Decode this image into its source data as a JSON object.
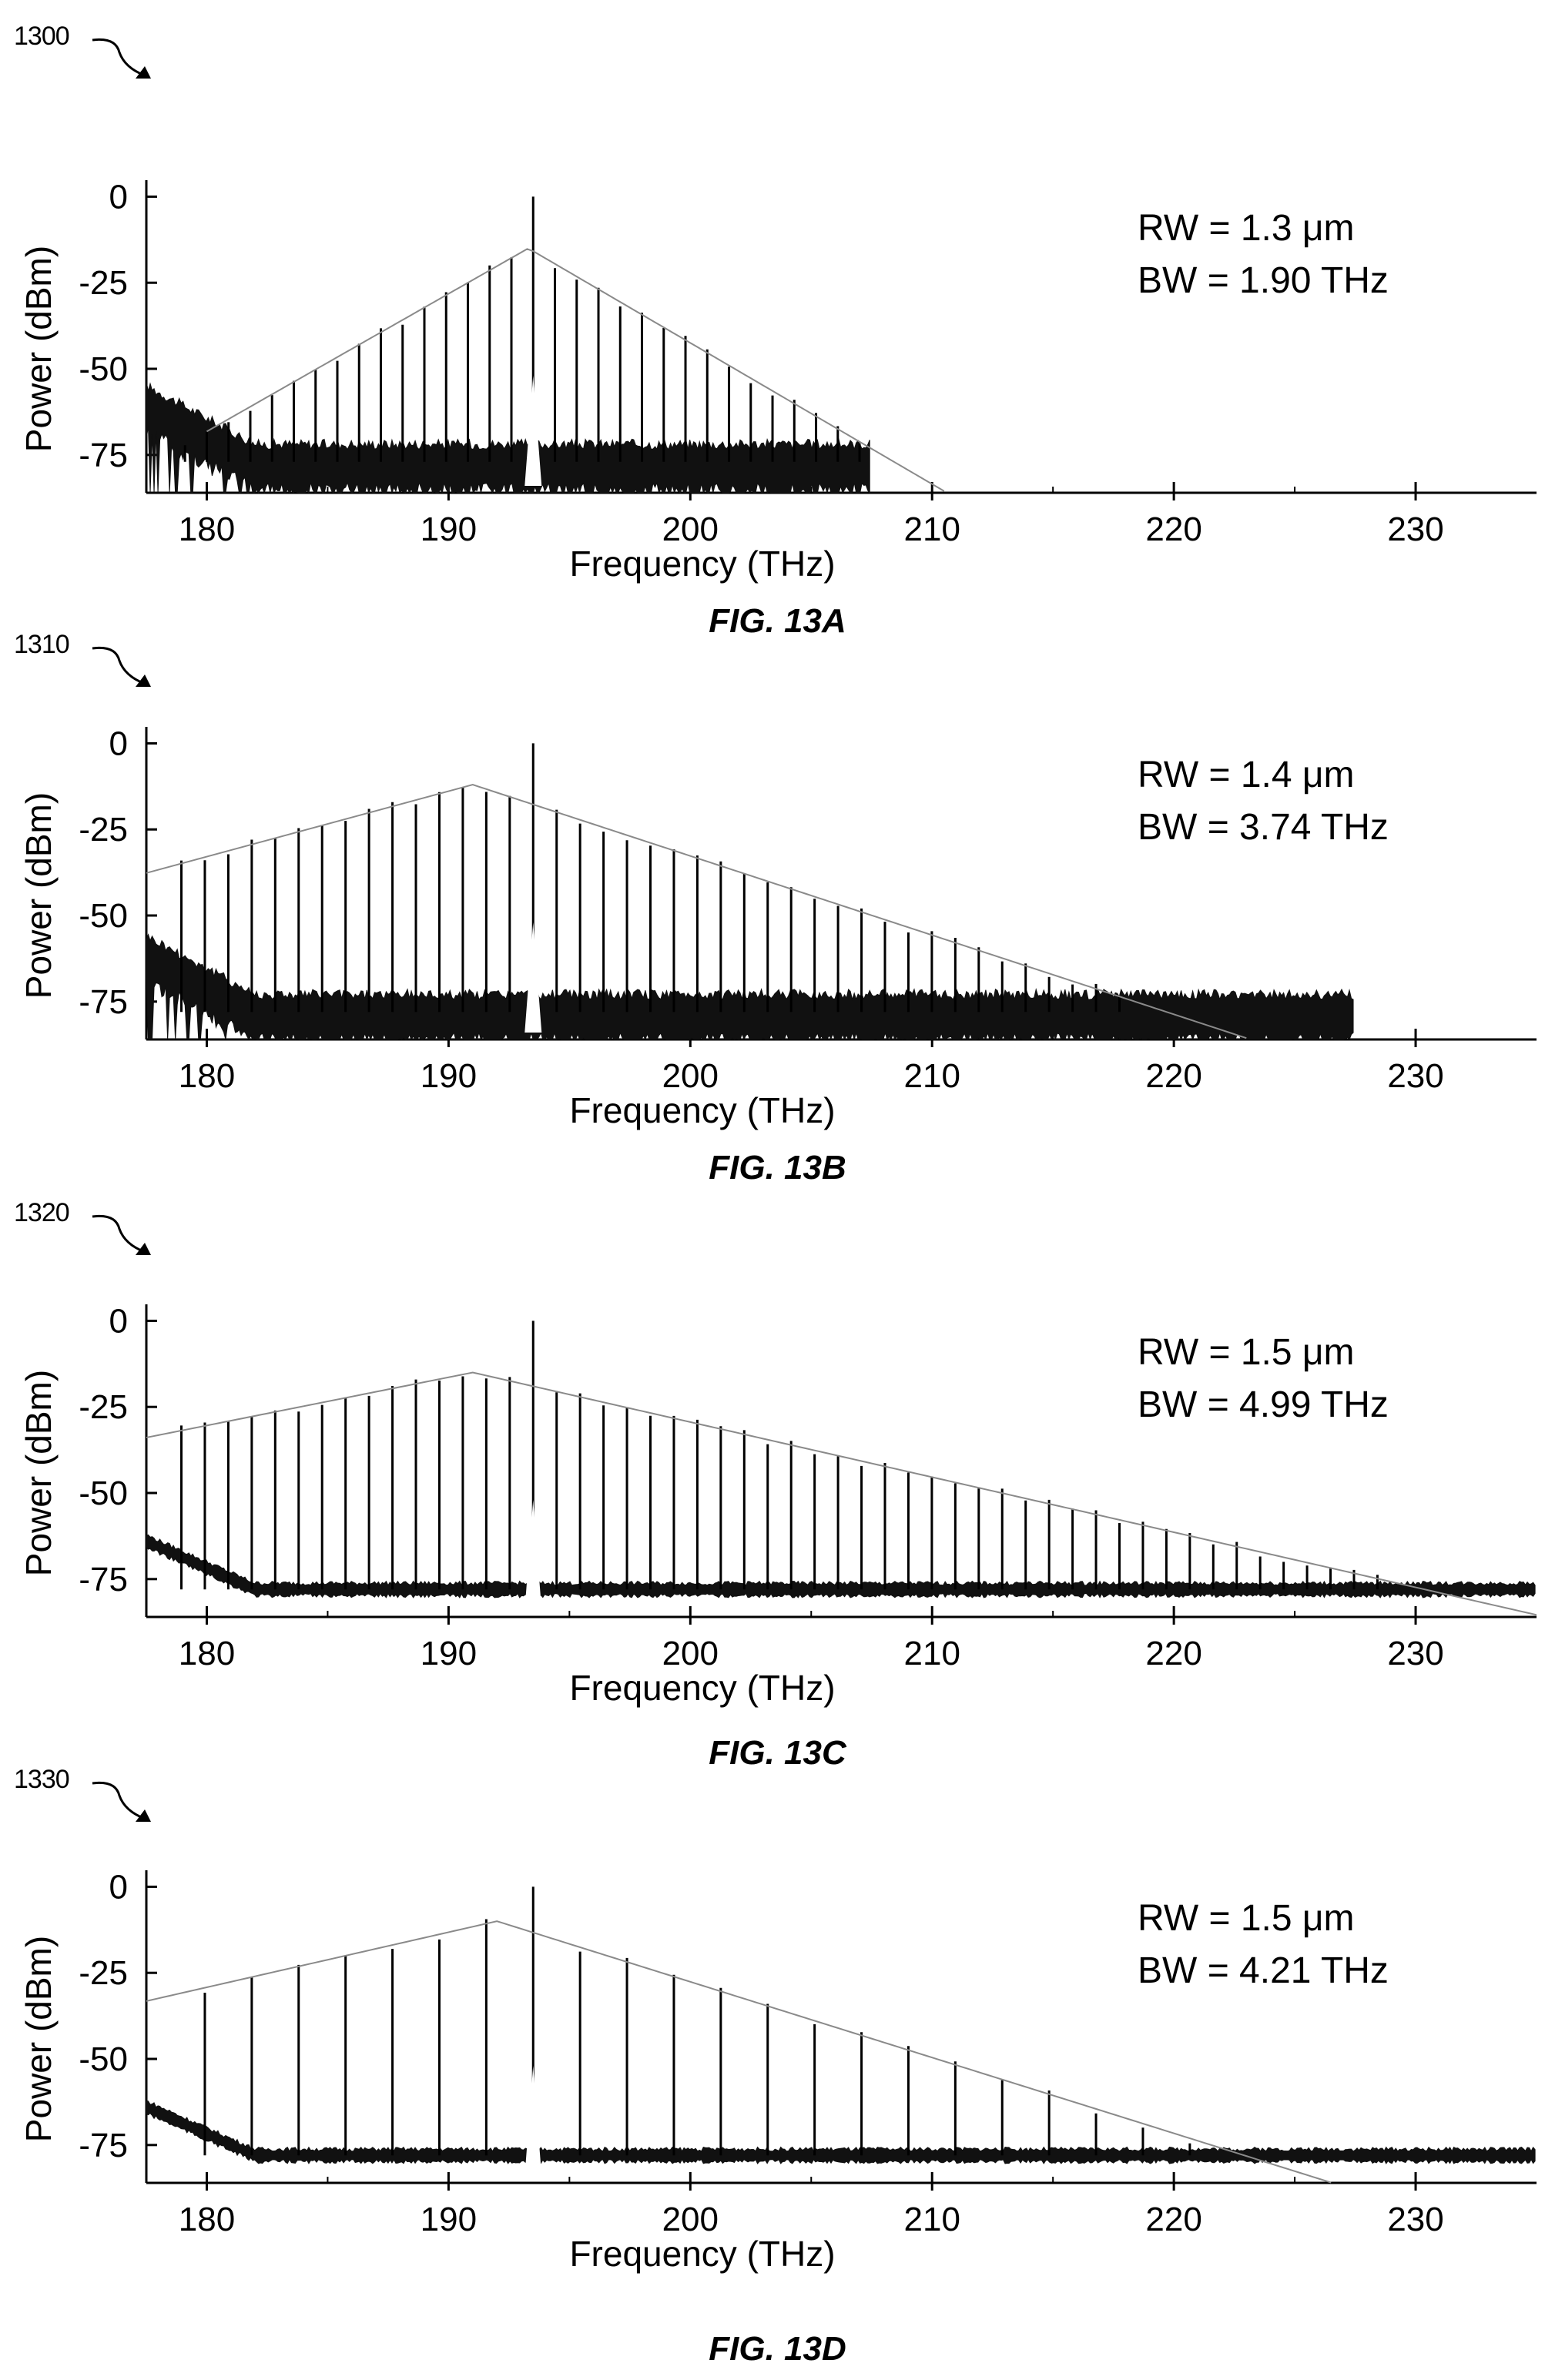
{
  "figures": [
    {
      "ref": "1300",
      "caption": "FIG. 13A",
      "annotation": {
        "rw": "RW = 1.3 μm",
        "bw": "BW = 1.90 THz"
      },
      "chart_data": {
        "type": "line",
        "xlabel": "Frequency (THz)",
        "ylabel": "Power (dBm)",
        "xlim": [
          177.5,
          235
        ],
        "ylim": [
          -86,
          3
        ],
        "x_ticks": [
          "180",
          "190",
          "200",
          "210",
          "220",
          "230"
        ],
        "y_ticks": [
          "0",
          "-25",
          "-50",
          "-75"
        ],
        "pump_frequency": 193.5,
        "comb_spacing": 0.9,
        "comb_range": [
          178.5,
          207.0
        ],
        "envelope_peak": {
          "x": 193.3,
          "y": -15
        },
        "envelope_slope_left": 4.0,
        "envelope_slope_right": 4.1,
        "noise_extent": 207.5,
        "noise_floor": -77,
        "noise_start_level": -60
      }
    },
    {
      "ref": "1310",
      "caption": "FIG. 13B",
      "annotation": {
        "rw": "RW = 1.4 μm",
        "bw": "BW = 3.74 THz"
      },
      "chart_data": {
        "type": "line",
        "xlabel": "Frequency (THz)",
        "ylabel": "Power (dBm)",
        "xlim": [
          177.5,
          235
        ],
        "ylim": [
          -86,
          3
        ],
        "x_ticks": [
          "180",
          "190",
          "200",
          "210",
          "220",
          "230"
        ],
        "y_ticks": [
          "0",
          "-25",
          "-50",
          "-75"
        ],
        "pump_frequency": 193.5,
        "comb_spacing": 0.97,
        "comb_range": [
          178.0,
          226.5
        ],
        "envelope_peak": {
          "x": 191.0,
          "y": -12
        },
        "envelope_slope_left": 1.9,
        "envelope_slope_right": 2.3,
        "noise_extent": 227.5,
        "noise_floor": -78,
        "noise_start_level": -61
      }
    },
    {
      "ref": "1320",
      "caption": "FIG. 13C",
      "annotation": {
        "rw": "RW = 1.5 μm",
        "bw": "BW = 4.99 THz"
      },
      "chart_data": {
        "type": "line",
        "xlabel": "Frequency (THz)",
        "ylabel": "Power (dBm)",
        "xlim": [
          177.5,
          235
        ],
        "ylim": [
          -86,
          3
        ],
        "x_ticks": [
          "180",
          "190",
          "200",
          "210",
          "220",
          "230"
        ],
        "y_ticks": [
          "0",
          "-25",
          "-50",
          "-75"
        ],
        "pump_frequency": 193.5,
        "comb_spacing": 0.97,
        "comb_range": [
          178.0,
          231.5
        ],
        "envelope_peak": {
          "x": 191.0,
          "y": -15
        },
        "envelope_slope_left": 1.4,
        "envelope_slope_right": 1.6,
        "noise_extent": 235,
        "noise_floor": -78,
        "noise_start_level": -64
      }
    },
    {
      "ref": "1330",
      "caption": "FIG. 13D",
      "annotation": {
        "rw": "RW = 1.5 μm",
        "bw": "BW = 4.21 THz"
      },
      "chart_data": {
        "type": "line",
        "xlabel": "Frequency (THz)",
        "ylabel": "Power (dBm)",
        "xlim": [
          177.5,
          235
        ],
        "ylim": [
          -86,
          3
        ],
        "x_ticks": [
          "180",
          "190",
          "200",
          "210",
          "220",
          "230"
        ],
        "y_ticks": [
          "0",
          "-25",
          "-50",
          "-75"
        ],
        "pump_frequency": 193.5,
        "comb_spacing": 1.94,
        "comb_range": [
          178.0,
          227.0
        ],
        "envelope_peak": {
          "x": 192.0,
          "y": -10
        },
        "envelope_slope_left": 1.6,
        "envelope_slope_right": 2.2,
        "noise_extent": 235,
        "noise_floor": -78,
        "noise_start_level": -64
      }
    }
  ]
}
